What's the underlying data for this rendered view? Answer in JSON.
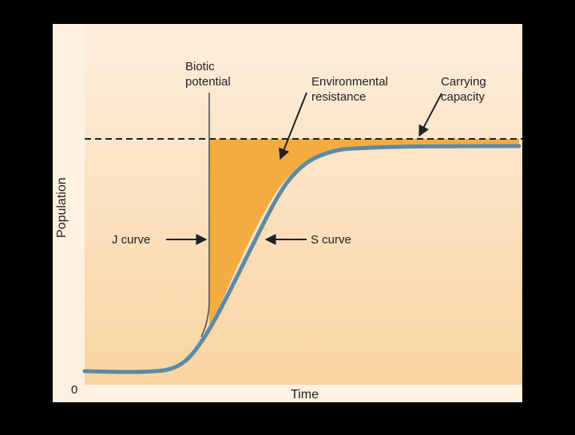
{
  "diagram": {
    "y_axis_label": "Population",
    "x_axis_label": "Time",
    "origin_label": "0",
    "annotations": {
      "biotic_potential": [
        "Biotic",
        "potential"
      ],
      "environmental_resistance": [
        "Environmental",
        "resistance"
      ],
      "carrying_capacity": [
        "Carrying",
        "capacity"
      ],
      "j_curve": "J curve",
      "s_curve": "S curve"
    }
  },
  "colors": {
    "background": "#000000",
    "panel": "#fdf1e1",
    "plot_top": "#fdeedd",
    "plot_bottom": "#f9d4a1",
    "resistance_fill": "#f2ac40",
    "s_curve": "#5c8aa5",
    "j_curve": "#555555",
    "dashed_line": "#222222",
    "text": "#222222"
  }
}
